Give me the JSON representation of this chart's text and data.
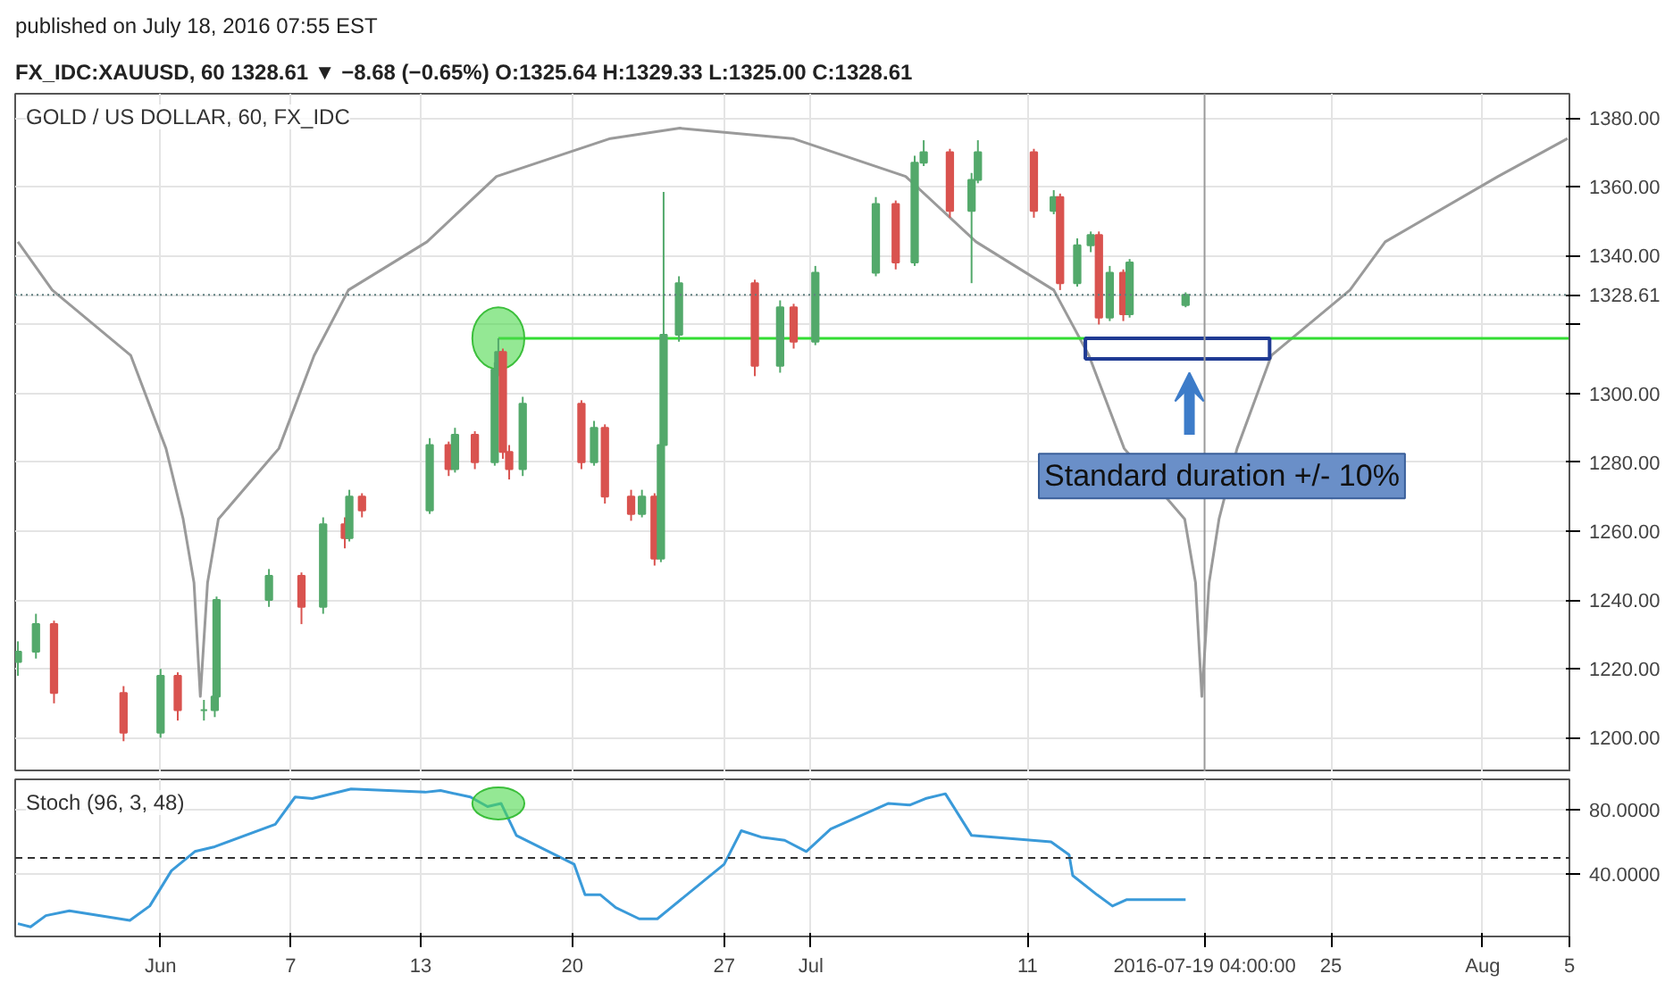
{
  "chart_data": [
    {
      "type": "candlestick",
      "title": "GOLD / US DOLLAR, 60, FX_IDC",
      "x": [
        "2016-05-25T10:00",
        "2016-05-26T06:00",
        "2016-05-27T02:00",
        "2016-05-30T07:00",
        "2016-06-01T00:00",
        "2016-06-01T19:00",
        "2016-06-03T00:00",
        "2016-06-03T12:00",
        "2016-06-03T14:00",
        "2016-06-06T00:00",
        "2016-06-07T12:00",
        "2016-06-08T12:00",
        "2016-06-09T12:00",
        "2016-06-09T17:00",
        "2016-06-10T07:00",
        "2016-06-13T10:00",
        "2016-06-14T07:00",
        "2016-06-14T14:00",
        "2016-06-15T12:00",
        "2016-06-16T10:00",
        "2016-06-16T14:00",
        "2016-06-16T19:00",
        "2016-06-17T02:00",
        "2016-06-17T17:00",
        "2016-06-20T10:00",
        "2016-06-21T00:00",
        "2016-06-21T12:00",
        "2016-06-22T17:00",
        "2016-06-23T05:00",
        "2016-06-23T19:00",
        "2016-06-24T02:00",
        "2016-06-24T05:00",
        "2016-06-24T22:00",
        "2016-06-28T10:00",
        "2016-06-29T14:00",
        "2016-06-30T05:00",
        "2016-07-01T05:00",
        "2016-07-04T00:00",
        "2016-07-04T22:00",
        "2016-07-05T19:00",
        "2016-07-06T05:00",
        "2016-07-07T10:00",
        "2016-07-08T10:00",
        "2016-07-08T17:00",
        "2016-07-11T07:00",
        "2016-07-12T05:00",
        "2016-07-12T12:00",
        "2016-07-13T07:00",
        "2016-07-13T22:00",
        "2016-07-14T07:00",
        "2016-07-14T19:00",
        "2016-07-15T10:00",
        "2016-07-15T17:00",
        "2016-07-18T07:00"
      ],
      "ohlc": [
        [
          1222,
          1228,
          1218,
          1225
        ],
        [
          1225,
          1236,
          1223,
          1233
        ],
        [
          1233,
          1234,
          1210,
          1213
        ],
        [
          1213,
          1215,
          1199,
          1201.5
        ],
        [
          1201.5,
          1220,
          1200,
          1218
        ],
        [
          1218,
          1219,
          1205,
          1208
        ],
        [
          1208,
          1211,
          1205,
          1208
        ],
        [
          1208,
          1213,
          1206,
          1212
        ],
        [
          1212,
          1241,
          1211,
          1240
        ],
        [
          1240,
          1249,
          1238,
          1247
        ],
        [
          1247,
          1248,
          1233,
          1238
        ],
        [
          1238,
          1264,
          1236,
          1262
        ],
        [
          1262,
          1264,
          1255,
          1258
        ],
        [
          1258,
          1272,
          1257,
          1270
        ],
        [
          1270,
          1271,
          1264,
          1266
        ],
        [
          1266,
          1287,
          1265,
          1285
        ],
        [
          1285,
          1286,
          1276,
          1278
        ],
        [
          1278,
          1290,
          1277,
          1288
        ],
        [
          1288,
          1289,
          1278,
          1280
        ],
        [
          1280,
          1309,
          1279,
          1307
        ],
        [
          1307,
          1316,
          1305,
          1312
        ],
        [
          1312,
          1313,
          1281,
          1283
        ],
        [
          1283,
          1285,
          1275,
          1278
        ],
        [
          1278,
          1299,
          1276,
          1297
        ],
        [
          1297,
          1298,
          1278,
          1280
        ],
        [
          1280,
          1292,
          1279,
          1290
        ],
        [
          1290,
          1291,
          1268,
          1270
        ],
        [
          1270,
          1272,
          1263,
          1265
        ],
        [
          1265,
          1272,
          1264,
          1270
        ],
        [
          1270,
          1271,
          1250,
          1252
        ],
        [
          1252,
          1287,
          1251,
          1285
        ],
        [
          1285,
          1358.5,
          1284,
          1317
        ],
        [
          1317,
          1334,
          1315,
          1332
        ],
        [
          1332,
          1333,
          1305,
          1308
        ],
        [
          1308,
          1327,
          1306,
          1325
        ],
        [
          1325,
          1326,
          1313,
          1315
        ],
        [
          1315,
          1337,
          1314,
          1335
        ],
        [
          1335,
          1357,
          1334,
          1355
        ],
        [
          1355,
          1356,
          1336,
          1338
        ],
        [
          1338,
          1369,
          1337,
          1367
        ],
        [
          1367,
          1373.5,
          1366,
          1370
        ],
        [
          1370,
          1371,
          1351,
          1353
        ],
        [
          1353,
          1364,
          1332,
          1362
        ],
        [
          1362,
          1373.5,
          1361,
          1370
        ],
        [
          1370,
          1371,
          1351,
          1353
        ],
        [
          1353,
          1359,
          1352,
          1357
        ],
        [
          1357,
          1358,
          1330,
          1332
        ],
        [
          1332,
          1345,
          1331,
          1343
        ],
        [
          1343,
          1347,
          1341,
          1346
        ],
        [
          1346,
          1347,
          1320,
          1322
        ],
        [
          1322,
          1337,
          1321,
          1335
        ],
        [
          1335,
          1336,
          1321,
          1323
        ],
        [
          1323,
          1339,
          1322,
          1338
        ],
        [
          1325.64,
          1329.33,
          1325.0,
          1328.61
        ]
      ],
      "series": [
        {
          "type": "line",
          "color": "#9a9a9a",
          "x": [
            "2016-05-25T10:00",
            "2016-05-27T00:00",
            "2016-05-30T15:00",
            "2016-06-01T06:00",
            "2016-06-02T01:00",
            "2016-06-02T13:00",
            "2016-06-02T20:00",
            "2016-06-03T04:00",
            "2016-06-03T16:00",
            "2016-06-06T11:00",
            "2016-06-08T02:00",
            "2016-06-09T16:00",
            "2016-06-13T07:00",
            "2016-06-16T12:00",
            "2016-06-21T18:00",
            "2016-06-24T23:00",
            "2016-06-30T04:00",
            "2016-07-05T09:00",
            "2016-07-08T15:00",
            "2016-07-12T05:00",
            "2016-07-13T20:00",
            "2016-07-15T11:00",
            "2016-07-18T06:00",
            "2016-07-18T18:00",
            "2016-07-19T01:00",
            "2016-07-19T09:00",
            "2016-07-19T20:00",
            "2016-07-20T16:00",
            "2016-07-22T06:00",
            "2016-07-25T21:00",
            "2016-07-27T12:00",
            "2016-08-01T17:00",
            "2016-08-04T22:00"
          ],
          "values": [
            1344,
            1330,
            1311,
            1284,
            1263.5,
            1245,
            1212,
            1245,
            1263.5,
            1284,
            1311,
            1330,
            1344,
            1363,
            1374,
            1377,
            1374,
            1363,
            1344,
            1330,
            1311,
            1284,
            1263.5,
            1245,
            1212,
            1245,
            1263.5,
            1284,
            1311,
            1330,
            1344,
            1363,
            1374
          ]
        },
        {
          "type": "line",
          "color": "#33dd33",
          "x": [
            "2016-06-16T14:00",
            "2016-08-05T00:00"
          ],
          "values": [
            1316,
            1316
          ]
        }
      ],
      "xlim": [
        "2016-05-25T07:00",
        "2016-08-05T00:00"
      ],
      "ylim": [
        1190,
        1387
      ],
      "xticks": [
        "2016-06-01",
        "2016-06-07",
        "2016-06-13",
        "2016-06-20",
        "2016-06-27",
        "2016-07-01",
        "2016-07-11",
        "2016-07-25",
        "2016-08-01",
        "2016-08-05"
      ],
      "yticks": [
        {
          "value": 1200,
          "label": "1200.00"
        },
        {
          "value": 1220,
          "label": "1220.00"
        },
        {
          "value": 1240,
          "label": "1240.00"
        },
        {
          "value": 1260,
          "label": "1260.00"
        },
        {
          "value": 1280,
          "label": "1280.00"
        },
        {
          "value": 1300,
          "label": "1300.00"
        },
        {
          "value": 1320,
          "label": null
        },
        {
          "value": 1328.61,
          "label": "1328.61"
        },
        {
          "value": 1340,
          "label": "1340.00"
        },
        {
          "value": 1360,
          "label": "1360.00"
        },
        {
          "value": 1380,
          "label": "1380.00"
        }
      ],
      "tick_labels": "y",
      "grid": true,
      "ref_lines": [
        {
          "axis": "y",
          "value": 1328.61,
          "line_style": "dotted",
          "color": "#5f7f7f"
        },
        {
          "axis": "x",
          "value": "2016-07-19T04:00",
          "color": "#9a9a9a"
        }
      ],
      "annotations": [
        "published on July 18, 2016 07:55 EST",
        "FX_IDC:XAUUSD, 60  1328.61 ▼ −8.68 (−0.65%)  O:1325.64  H:1329.33  L:1325.00  C:1328.61",
        "Standard duration +/- 10%"
      ]
    },
    {
      "type": "line",
      "title": "Stoch (96, 3, 48)",
      "series": [
        {
          "color": "#3a9ad9",
          "x": [
            "2016-05-25T10:00",
            "2016-05-26T00:00",
            "2016-05-26T17:00",
            "2016-05-27T19:00",
            "2016-05-30T14:00",
            "2016-05-31T12:00",
            "2016-06-01T12:00",
            "2016-06-02T14:00",
            "2016-06-03T12:00",
            "2016-06-06T07:00",
            "2016-06-07T05:00",
            "2016-06-08T00:00",
            "2016-06-09T19:00",
            "2016-06-13T05:00",
            "2016-06-13T22:00",
            "2016-06-15T07:00",
            "2016-06-16T02:00",
            "2016-06-16T17:00",
            "2016-06-17T10:00",
            "2016-06-20T02:00",
            "2016-06-20T14:00",
            "2016-06-21T07:00",
            "2016-06-22T00:00",
            "2016-06-23T02:00",
            "2016-06-23T22:00",
            "2016-06-27T00:00",
            "2016-06-27T19:00",
            "2016-06-28T17:00",
            "2016-06-29T19:00",
            "2016-06-30T19:00",
            "2016-07-01T22:00",
            "2016-07-04T14:00",
            "2016-07-05T14:00",
            "2016-07-06T07:00",
            "2016-07-07T05:00",
            "2016-07-08T10:00",
            "2016-07-12T02:00",
            "2016-07-12T22:00",
            "2016-07-13T02:00",
            "2016-07-14T05:00",
            "2016-07-14T22:00",
            "2016-07-15T14:00",
            "2016-07-18T07:00"
          ],
          "values": [
            9,
            7,
            14,
            17,
            11,
            20,
            42,
            54,
            57,
            71,
            88,
            87,
            93,
            91,
            92,
            88,
            82,
            84,
            64,
            46,
            27,
            27,
            19,
            12,
            12,
            46,
            67,
            63,
            61,
            54,
            68,
            84,
            83,
            87,
            90,
            64,
            60,
            52,
            39,
            27,
            20,
            24,
            24
          ]
        }
      ],
      "xlim": [
        "2016-05-25T07:00",
        "2016-08-05T00:00"
      ],
      "ylim": [
        1,
        99
      ],
      "xticks": [
        {
          "value": "2016-06-01",
          "label": "Jun"
        },
        {
          "value": "2016-06-07",
          "label": "7"
        },
        {
          "value": "2016-06-13",
          "label": "13"
        },
        {
          "value": "2016-06-20",
          "label": "20"
        },
        {
          "value": "2016-06-27",
          "label": "27"
        },
        {
          "value": "2016-07-01",
          "label": "Jul"
        },
        {
          "value": "2016-07-11",
          "label": "11"
        },
        {
          "value": "2016-07-19T04:00",
          "label": "2016-07-19 04:00:00"
        },
        {
          "value": "2016-07-25",
          "label": "25"
        },
        {
          "value": "2016-08-01",
          "label": "Aug"
        },
        {
          "value": "2016-08-05",
          "label": "5"
        }
      ],
      "yticks": [
        {
          "value": 40,
          "label": "40.0000"
        },
        {
          "value": 80,
          "label": "80.0000"
        }
      ],
      "grid": true,
      "ref_lines": [
        {
          "axis": "y",
          "value": 50,
          "line_style": "dashed",
          "color": "#333333"
        }
      ]
    }
  ]
}
